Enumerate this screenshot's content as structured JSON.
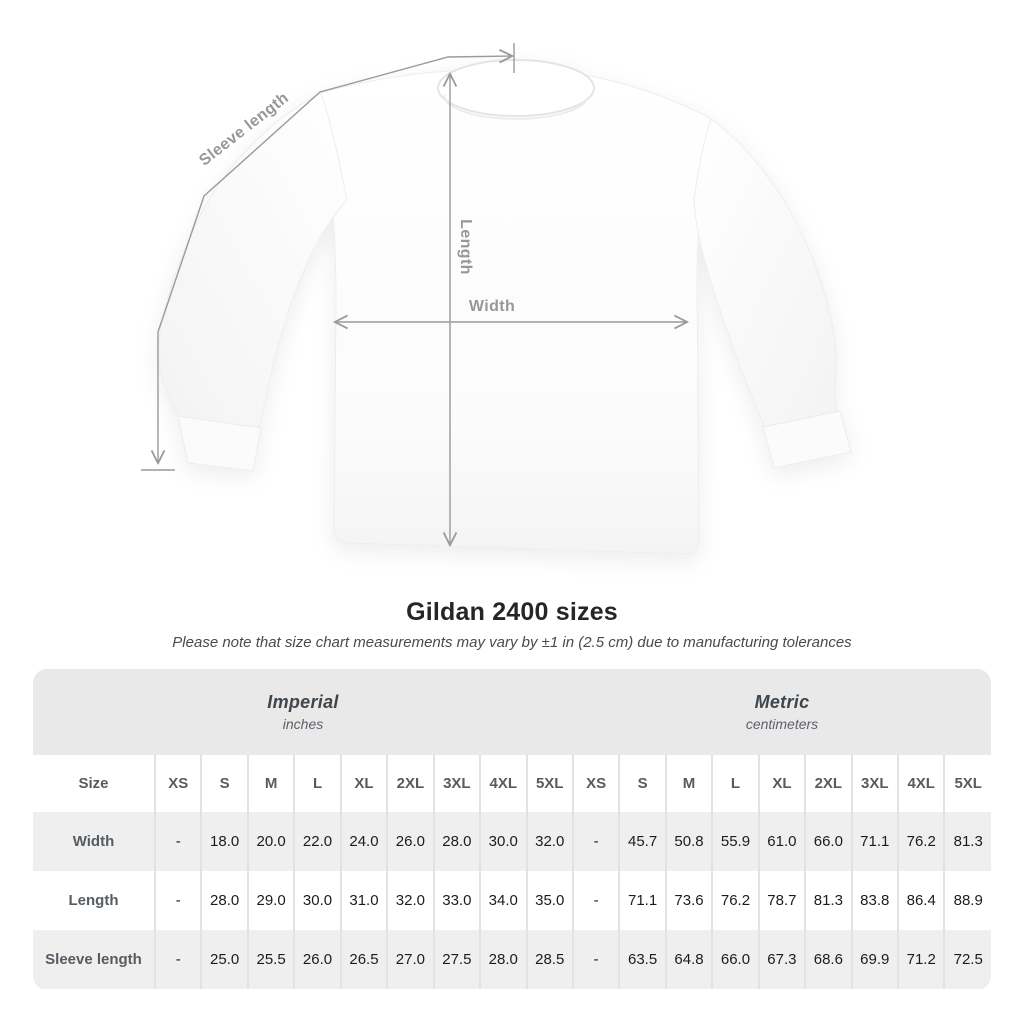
{
  "diagram": {
    "labels": {
      "sleeve_length": "Sleeve length",
      "length": "Length",
      "width": "Width"
    }
  },
  "heading": {
    "title": "Gildan 2400 sizes",
    "subtitle": "Please note that size chart measurements may vary by ±1 in (2.5 cm) due to manufacturing tolerances"
  },
  "table": {
    "groups": [
      {
        "label": "Imperial",
        "unit": "inches"
      },
      {
        "label": "Metric",
        "unit": "centimeters"
      }
    ],
    "size_column_header": "Size",
    "sizes": [
      "XS",
      "S",
      "M",
      "L",
      "XL",
      "2XL",
      "3XL",
      "4XL",
      "5XL"
    ],
    "rows": [
      {
        "label": "Width",
        "imperial": [
          "-",
          "18.0",
          "20.0",
          "22.0",
          "24.0",
          "26.0",
          "28.0",
          "30.0",
          "32.0"
        ],
        "metric": [
          "-",
          "45.7",
          "50.8",
          "55.9",
          "61.0",
          "66.0",
          "71.1",
          "76.2",
          "81.3"
        ]
      },
      {
        "label": "Length",
        "imperial": [
          "-",
          "28.0",
          "29.0",
          "30.0",
          "31.0",
          "32.0",
          "33.0",
          "34.0",
          "35.0"
        ],
        "metric": [
          "-",
          "71.1",
          "73.6",
          "76.2",
          "78.7",
          "81.3",
          "83.8",
          "86.4",
          "88.9"
        ]
      },
      {
        "label": "Sleeve length",
        "imperial": [
          "-",
          "25.0",
          "25.5",
          "26.0",
          "26.5",
          "27.0",
          "27.5",
          "28.0",
          "28.5"
        ],
        "metric": [
          "-",
          "63.5",
          "64.8",
          "66.0",
          "67.3",
          "68.6",
          "69.9",
          "71.2",
          "72.5"
        ]
      }
    ]
  },
  "colors": {
    "dimension_line": "#9a9a9a",
    "dimension_label": "#95979a",
    "band_bg": "#e9e9e9",
    "stripe_bg": "#efefef",
    "separator": "#e2e2e2",
    "title_text": "#262626",
    "subtitle_text": "#4a4a4a",
    "header_text": "#565c62",
    "value_text": "#1a1c1e"
  }
}
